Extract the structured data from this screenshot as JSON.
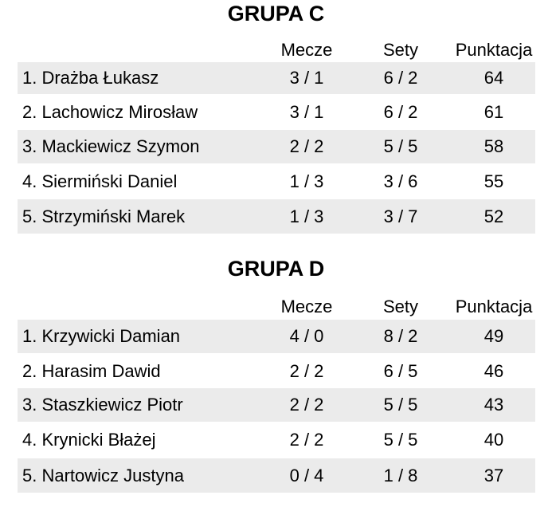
{
  "headers": {
    "matches": "Mecze",
    "sets": "Sety",
    "points": "Punktacja"
  },
  "groups": [
    {
      "title": "GRUPA C",
      "rows": [
        {
          "name": "1. Drażba Łukasz",
          "matches": "3 / 1",
          "sets": "6 / 2",
          "points": "64"
        },
        {
          "name": "2. Lachowicz Mirosław",
          "matches": "3 / 1",
          "sets": "6 / 2",
          "points": "61"
        },
        {
          "name": "3. Mackiewicz Szymon",
          "matches": "2 / 2",
          "sets": "5 / 5",
          "points": "58"
        },
        {
          "name": "4. Siermiński Daniel",
          "matches": "1 / 3",
          "sets": "3 / 6",
          "points": "55"
        },
        {
          "name": "5. Strzymiński Marek",
          "matches": "1 / 3",
          "sets": "3 / 7",
          "points": "52"
        }
      ]
    },
    {
      "title": "GRUPA D",
      "rows": [
        {
          "name": "1. Krzywicki Damian",
          "matches": "4 / 0",
          "sets": "8 / 2",
          "points": "49"
        },
        {
          "name": "2. Harasim Dawid",
          "matches": "2 / 2",
          "sets": "6 / 5",
          "points": "46"
        },
        {
          "name": "3. Staszkiewicz Piotr",
          "matches": "2 / 2",
          "sets": "5 / 5",
          "points": "43"
        },
        {
          "name": "4. Krynicki Błażej",
          "matches": "2 / 2",
          "sets": "5 / 5",
          "points": "40"
        },
        {
          "name": "5. Nartowicz Justyna",
          "matches": "0 / 4",
          "sets": "1 / 8",
          "points": "37"
        }
      ]
    }
  ],
  "colors": {
    "row_shade": "#ebebeb"
  }
}
